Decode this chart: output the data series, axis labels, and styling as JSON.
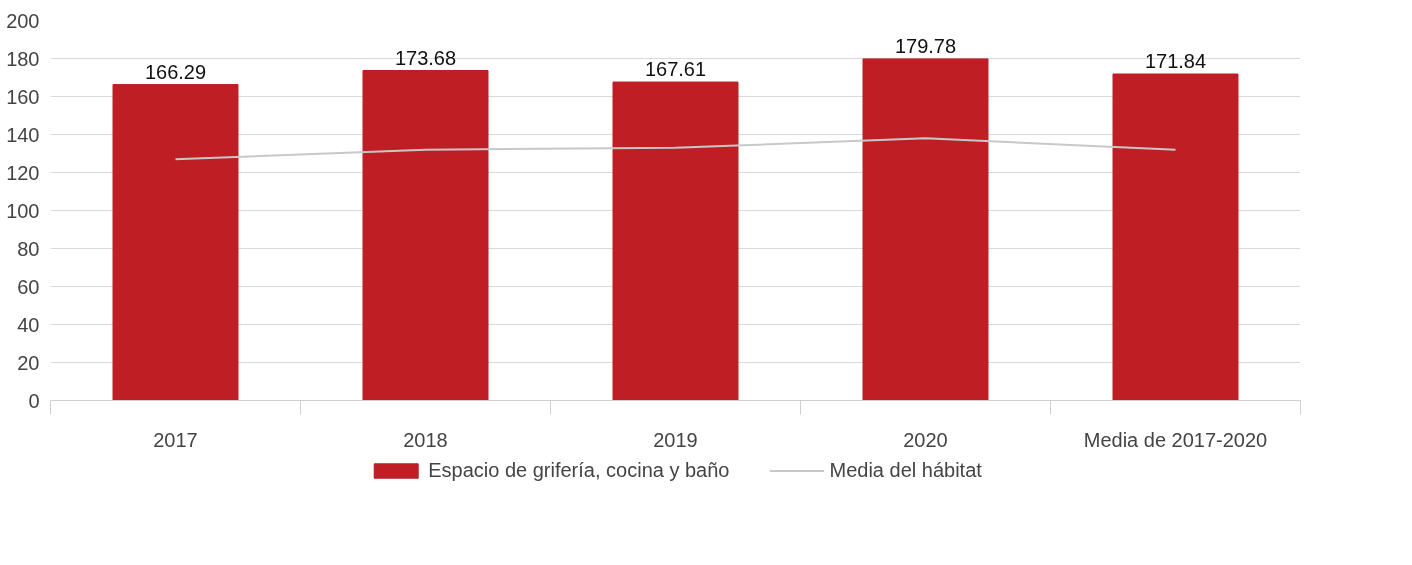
{
  "chart_data": {
    "type": "bar",
    "categories": [
      "2017",
      "2018",
      "2019",
      "2020",
      "Media de 2017-2020"
    ],
    "series": [
      {
        "name": "Espacio de grifería, cocina y baño",
        "color": "#be1e24",
        "values": [
          166.29,
          173.68,
          167.61,
          179.78,
          171.84
        ],
        "value_labels": [
          "166.29",
          "173.68",
          "167.61",
          "179.78",
          "171.84"
        ]
      },
      {
        "name": "Media del hábitat",
        "type": "line",
        "color": "#c8c8c8",
        "values": [
          127,
          132,
          133,
          138,
          132
        ]
      }
    ],
    "ylim": [
      0,
      200
    ],
    "yticks": [
      0,
      20,
      40,
      60,
      80,
      100,
      120,
      140,
      160,
      180,
      200
    ],
    "grid": "y",
    "legend": "bottom"
  }
}
